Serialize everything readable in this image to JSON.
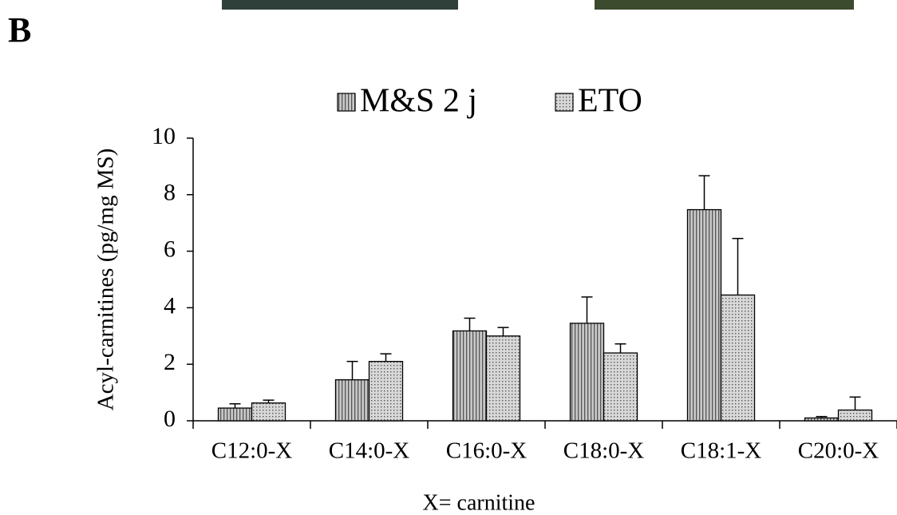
{
  "panel_label": "B",
  "chart_data": {
    "type": "bar",
    "y_label": "Acyl-carnitines (pg/mg MS)",
    "x_label": "X= carnitine",
    "categories": [
      "C12:0-X",
      "C14:0-X",
      "C16:0-X",
      "C18:0-X",
      "C18:1-X",
      "C20:0-X"
    ],
    "series": [
      {
        "name": "M&S 2 j",
        "color": "#c8c8c8",
        "pattern": "vertical-stripes",
        "values": [
          0.45,
          1.45,
          3.18,
          3.45,
          7.47,
          0.1
        ],
        "errors": [
          0.15,
          0.65,
          0.45,
          0.93,
          1.2,
          0.05
        ]
      },
      {
        "name": "ETO",
        "color": "#d8d8d8",
        "pattern": "dots",
        "values": [
          0.63,
          2.1,
          3.0,
          2.4,
          4.45,
          0.38
        ],
        "errors": [
          0.1,
          0.27,
          0.3,
          0.32,
          2.0,
          0.46
        ]
      }
    ],
    "ylim": [
      0,
      10
    ],
    "yticks": [
      0,
      2,
      4,
      6,
      8,
      10
    ],
    "legend": "top",
    "grid": false
  }
}
